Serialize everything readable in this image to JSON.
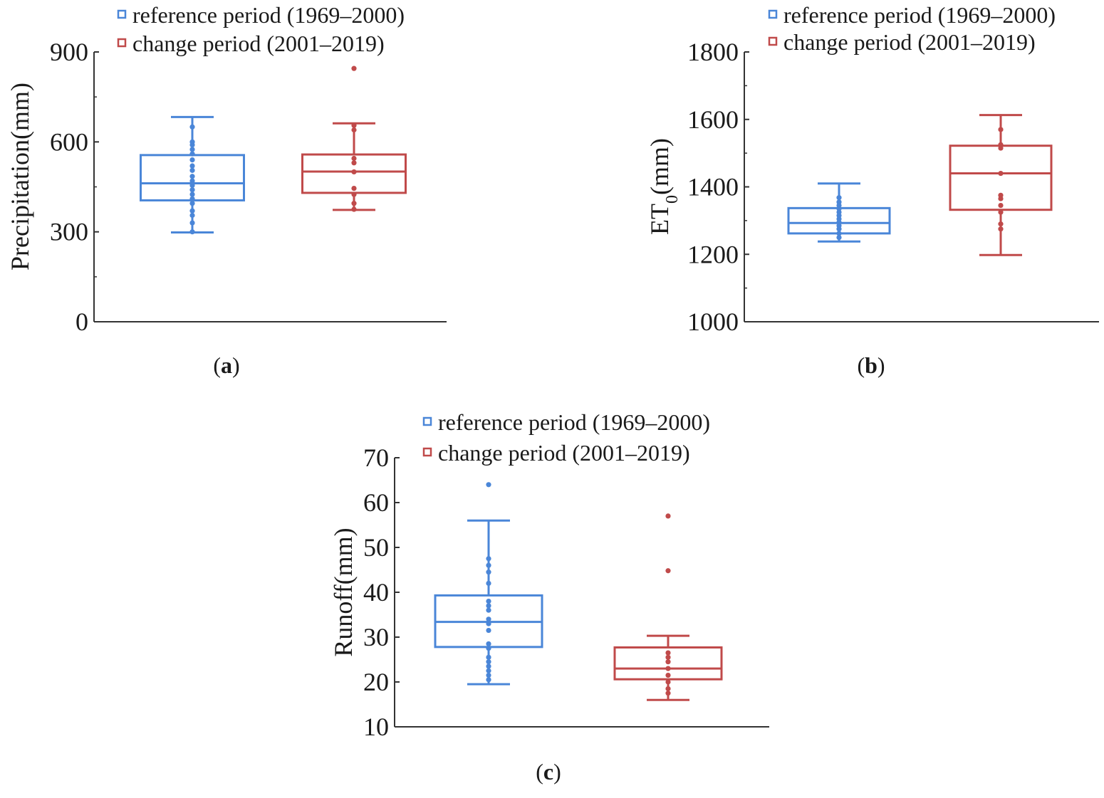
{
  "colors": {
    "reference": "#4a86d8",
    "change": "#c04a4a",
    "axis": "#333333"
  },
  "chart_data": [
    {
      "id": "a",
      "type": "box",
      "panel_label": {
        "open": "(",
        "letter": "a",
        "close": ")"
      },
      "ylabel": "Precipitation(mm)",
      "ylabel_sub": "",
      "ylabel_suffix": "",
      "ylim": [
        0,
        900
      ],
      "yticks": [
        0,
        300,
        600,
        900
      ],
      "yticks_minor": [
        150,
        450,
        750
      ],
      "legend": [
        "reference period (1969–2000)",
        "change period (2001–2019)"
      ],
      "series": [
        {
          "name": "reference period (1969–2000)",
          "whisker_low": 298,
          "q1": 405,
          "median": 462,
          "q3": 556,
          "whisker_high": 683,
          "points": [
            300,
            330,
            355,
            370,
            395,
            410,
            425,
            440,
            455,
            470,
            485,
            505,
            520,
            540,
            560,
            575,
            590,
            600,
            650
          ]
        },
        {
          "name": "change period (2001–2019)",
          "whisker_low": 373,
          "q1": 430,
          "median": 501,
          "q3": 558,
          "whisker_high": 662,
          "points": [
            375,
            395,
            425,
            445,
            500,
            530,
            545,
            640,
            655,
            845
          ]
        }
      ]
    },
    {
      "id": "b",
      "type": "box",
      "panel_label": {
        "open": "(",
        "letter": "b",
        "close": ")"
      },
      "ylabel": "ET",
      "ylabel_sub": "0",
      "ylabel_suffix": "(mm)",
      "ylim": [
        1000,
        1800
      ],
      "yticks": [
        1000,
        1200,
        1400,
        1600,
        1800
      ],
      "yticks_minor": [
        1100,
        1300,
        1500,
        1700
      ],
      "legend": [
        "reference period (1969–2000)",
        "change period (2001–2019)"
      ],
      "series": [
        {
          "name": "reference period (1969–2000)",
          "whisker_low": 1238,
          "q1": 1262,
          "median": 1293,
          "q3": 1337,
          "whisker_high": 1410,
          "points": [
            1250,
            1262,
            1275,
            1285,
            1295,
            1305,
            1315,
            1325,
            1335,
            1345,
            1355,
            1368
          ]
        },
        {
          "name": "change period (2001–2019)",
          "whisker_low": 1198,
          "q1": 1332,
          "median": 1440,
          "q3": 1522,
          "whisker_high": 1613,
          "points": [
            1275,
            1290,
            1325,
            1345,
            1365,
            1375,
            1440,
            1515,
            1525,
            1570
          ]
        }
      ]
    },
    {
      "id": "c",
      "type": "box",
      "panel_label": {
        "open": "(",
        "letter": "c",
        "close": ")"
      },
      "ylabel": "Runoff(mm)",
      "ylabel_sub": "",
      "ylabel_suffix": "",
      "ylim": [
        10,
        70
      ],
      "yticks": [
        10,
        20,
        30,
        40,
        50,
        60,
        70
      ],
      "yticks_minor": [],
      "legend": [
        "reference period (1969–2000)",
        "change period (2001–2019)"
      ],
      "series": [
        {
          "name": "reference period (1969–2000)",
          "whisker_low": 19.5,
          "q1": 27.8,
          "median": 33.4,
          "q3": 39.3,
          "whisker_high": 56,
          "points": [
            20.5,
            21.5,
            22.5,
            23.5,
            24.5,
            25.5,
            27.5,
            28.5,
            31.5,
            33,
            34,
            36,
            37,
            38,
            42,
            44.5,
            46,
            47.5,
            64
          ]
        },
        {
          "name": "change period (2001–2019)",
          "whisker_low": 16,
          "q1": 20.6,
          "median": 23,
          "q3": 27.7,
          "whisker_high": 30.3,
          "points": [
            17.5,
            18.5,
            20,
            21.5,
            23,
            24.5,
            25.5,
            26.5,
            44.8,
            57
          ]
        }
      ]
    }
  ]
}
